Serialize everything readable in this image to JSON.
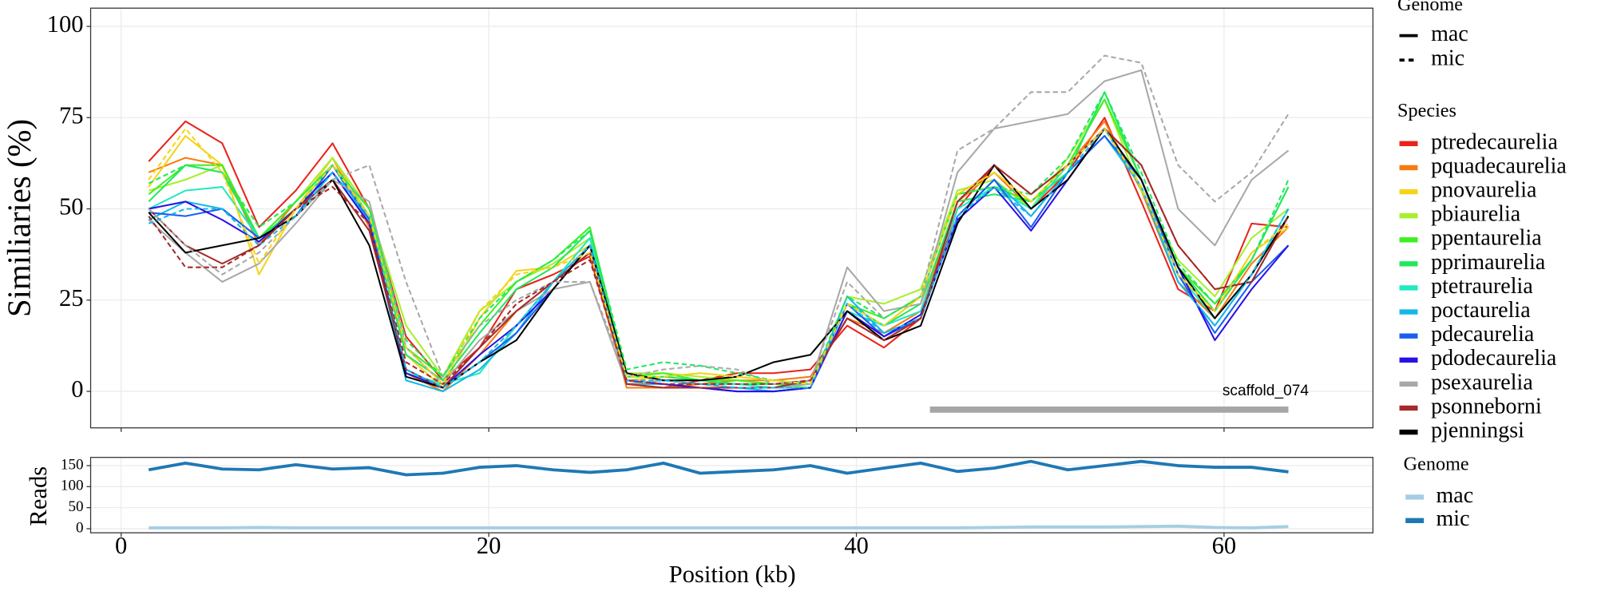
{
  "chart_data": [
    {
      "type": "line",
      "y_label": "Similiaries (%)",
      "xlim": [
        -1.66,
        68.1
      ],
      "ylim": [
        -10,
        105
      ],
      "yticks": [
        0,
        25,
        50,
        75,
        100
      ],
      "grid": true,
      "x": [
        1.5,
        3.5,
        5.5,
        7.5,
        9.5,
        11.5,
        13.5,
        15.5,
        17.5,
        19.5,
        21.5,
        23.5,
        25.5,
        27.5,
        29.5,
        31.5,
        33.5,
        35.5,
        37.5,
        39.5,
        41.5,
        43.5,
        45.5,
        47.5,
        49.5,
        51.5,
        53.5,
        55.5,
        57.5,
        59.5,
        61.5,
        63.5
      ],
      "genome_legend": {
        "title": "Genome",
        "items": [
          {
            "name": "mac",
            "dash": "solid"
          },
          {
            "name": "mic",
            "dash": "dashed"
          }
        ]
      },
      "legend_title": "Species",
      "annotation": {
        "text": "scaffold_074",
        "xstart": 44,
        "xend": 63.5,
        "y": -5,
        "color": "#a6a6a6"
      },
      "series": [
        {
          "name": "ptredecaurelia",
          "genome": "mac",
          "color": "#e8231a",
          "values": [
            63,
            74,
            68,
            45,
            55,
            68,
            50,
            15,
            3,
            12,
            28,
            32,
            37,
            2,
            1,
            3,
            5,
            5,
            6,
            18,
            12,
            20,
            50,
            62,
            50,
            60,
            75,
            52,
            28,
            22,
            46,
            45
          ]
        },
        {
          "name": "pquadecaurelia",
          "genome": "mac",
          "color": "#f97a10",
          "values": [
            60,
            64,
            62,
            40,
            52,
            64,
            45,
            5,
            0,
            10,
            22,
            30,
            38,
            1,
            1,
            2,
            3,
            3,
            4,
            20,
            16,
            22,
            52,
            60,
            50,
            62,
            74,
            55,
            30,
            20,
            35,
            45
          ]
        },
        {
          "name": "pnovaurelia",
          "genome": "mac",
          "color": "#f5d31a",
          "values": [
            56,
            70,
            62,
            32,
            50,
            64,
            48,
            10,
            1,
            20,
            33,
            34,
            40,
            3,
            4,
            5,
            4,
            3,
            2,
            24,
            18,
            26,
            54,
            60,
            52,
            62,
            72,
            56,
            32,
            22,
            38,
            45
          ]
        },
        {
          "name": "pbiaurelia",
          "genome": "mac",
          "color": "#a6f02a",
          "values": [
            55,
            58,
            62,
            42,
            52,
            64,
            50,
            18,
            4,
            22,
            30,
            35,
            42,
            5,
            5,
            4,
            3,
            2,
            1,
            26,
            24,
            28,
            55,
            58,
            50,
            64,
            80,
            55,
            36,
            26,
            42,
            50
          ]
        },
        {
          "name": "ppentaurelia",
          "genome": "mac",
          "color": "#3ef01e",
          "values": [
            54,
            62,
            62,
            42,
            52,
            62,
            50,
            12,
            4,
            18,
            30,
            36,
            45,
            4,
            5,
            3,
            3,
            2,
            2,
            24,
            20,
            26,
            54,
            56,
            52,
            62,
            80,
            58,
            34,
            24,
            36,
            56
          ]
        },
        {
          "name": "pprimaurelia",
          "genome": "mac",
          "color": "#20e860",
          "values": [
            52,
            62,
            60,
            42,
            50,
            62,
            48,
            10,
            3,
            16,
            28,
            34,
            44,
            4,
            4,
            3,
            2,
            2,
            2,
            24,
            18,
            24,
            52,
            54,
            52,
            60,
            82,
            58,
            34,
            22,
            36,
            56
          ]
        },
        {
          "name": "ptetraurelia",
          "genome": "mac",
          "color": "#22e8c0",
          "values": [
            50,
            55,
            56,
            42,
            48,
            60,
            46,
            5,
            2,
            5,
            18,
            30,
            42,
            2,
            3,
            2,
            2,
            1,
            1,
            22,
            18,
            22,
            50,
            56,
            50,
            62,
            72,
            56,
            32,
            20,
            32,
            50
          ]
        },
        {
          "name": "poctaurelia",
          "genome": "mac",
          "color": "#14b8e8",
          "values": [
            47,
            52,
            50,
            42,
            48,
            62,
            46,
            3,
            0,
            6,
            16,
            30,
            40,
            2,
            2,
            1,
            1,
            0,
            1,
            26,
            16,
            20,
            48,
            58,
            48,
            60,
            70,
            56,
            30,
            18,
            32,
            48
          ]
        },
        {
          "name": "pdecaurelia",
          "genome": "mac",
          "color": "#1a5ef0",
          "values": [
            49,
            48,
            50,
            42,
            48,
            62,
            47,
            6,
            1,
            8,
            16,
            28,
            40,
            3,
            2,
            1,
            0,
            0,
            1,
            24,
            15,
            20,
            48,
            58,
            45,
            60,
            70,
            58,
            32,
            16,
            30,
            40
          ]
        },
        {
          "name": "pdodecaurelia",
          "genome": "mac",
          "color": "#2a10e8",
          "values": [
            50,
            52,
            47,
            41,
            50,
            60,
            46,
            5,
            1,
            10,
            18,
            28,
            40,
            3,
            2,
            1,
            0,
            0,
            1,
            22,
            15,
            21,
            47,
            56,
            44,
            58,
            72,
            58,
            34,
            14,
            28,
            40
          ]
        },
        {
          "name": "psexaurelia",
          "genome": "mac",
          "color": "#a8a8a8",
          "values": [
            47,
            38,
            30,
            35,
            46,
            58,
            52,
            12,
            2,
            14,
            22,
            28,
            30,
            2,
            3,
            2,
            1,
            1,
            2,
            34,
            22,
            24,
            60,
            72,
            74,
            76,
            85,
            88,
            50,
            40,
            58,
            66
          ]
        },
        {
          "name": "psonneborni",
          "genome": "mac",
          "color": "#a52a2a",
          "values": [
            50,
            40,
            35,
            40,
            50,
            58,
            44,
            6,
            1,
            12,
            22,
            30,
            38,
            2,
            1,
            1,
            1,
            1,
            3,
            20,
            14,
            20,
            52,
            62,
            54,
            62,
            72,
            62,
            40,
            28,
            30,
            48
          ]
        },
        {
          "name": "pjenningsi",
          "genome": "mac",
          "color": "#000000",
          "values": [
            49,
            38,
            40,
            42,
            48,
            58,
            40,
            4,
            1,
            8,
            14,
            28,
            40,
            5,
            3,
            3,
            4,
            8,
            10,
            22,
            14,
            18,
            46,
            62,
            50,
            58,
            72,
            58,
            34,
            20,
            32,
            48
          ]
        },
        {
          "name": "psexaurelia",
          "genome": "mic",
          "color": "#a8a8a8",
          "values": [
            50,
            40,
            32,
            38,
            48,
            58,
            62,
            30,
            4,
            18,
            25,
            30,
            30,
            4,
            6,
            7,
            6,
            2,
            3,
            30,
            20,
            26,
            66,
            72,
            82,
            82,
            92,
            90,
            62,
            52,
            60,
            76
          ]
        },
        {
          "name": "pprimaurelia",
          "genome": "mic",
          "color": "#20e860",
          "values": [
            57,
            62,
            60,
            45,
            52,
            62,
            50,
            14,
            4,
            20,
            30,
            36,
            44,
            6,
            8,
            7,
            5,
            3,
            2,
            26,
            20,
            26,
            54,
            56,
            54,
            64,
            82,
            60,
            35,
            24,
            36,
            58
          ]
        },
        {
          "name": "poctaurelia",
          "genome": "mic",
          "color": "#14b8e8",
          "values": [
            46,
            50,
            50,
            40,
            48,
            60,
            48,
            6,
            1,
            8,
            18,
            30,
            40,
            3,
            3,
            2,
            1,
            1,
            1,
            24,
            16,
            20,
            48,
            56,
            48,
            60,
            72,
            56,
            30,
            18,
            32,
            50
          ]
        },
        {
          "name": "psonneborni",
          "genome": "mic",
          "color": "#a52a2a",
          "values": [
            48,
            34,
            34,
            40,
            50,
            56,
            46,
            8,
            2,
            12,
            24,
            30,
            36,
            3,
            2,
            2,
            2,
            2,
            3,
            20,
            14,
            20,
            52,
            62,
            54,
            62,
            72,
            62,
            40,
            28,
            30,
            48
          ]
        },
        {
          "name": "pnovaurelia",
          "genome": "mic",
          "color": "#f5d31a",
          "values": [
            58,
            72,
            60,
            35,
            50,
            62,
            48,
            12,
            2,
            22,
            32,
            34,
            38,
            4,
            4,
            5,
            4,
            3,
            2,
            24,
            18,
            26,
            54,
            60,
            52,
            62,
            72,
            56,
            32,
            22,
            38,
            46
          ]
        }
      ]
    },
    {
      "type": "line",
      "x_label": "Position (kb)",
      "y_label": "Reads",
      "xlim": [
        -1.66,
        68.1
      ],
      "xticks": [
        0,
        20,
        40,
        60
      ],
      "ylim": [
        -9.7,
        169.5
      ],
      "yticks": [
        0,
        50,
        100,
        150
      ],
      "grid": true,
      "legend_title": "Genome",
      "x": [
        1.5,
        3.5,
        5.5,
        7.5,
        9.5,
        11.5,
        13.5,
        15.5,
        17.5,
        19.5,
        21.5,
        23.5,
        25.5,
        27.5,
        29.5,
        31.5,
        33.5,
        35.5,
        37.5,
        39.5,
        41.5,
        43.5,
        45.5,
        47.5,
        49.5,
        51.5,
        53.5,
        55.5,
        57.5,
        59.5,
        61.5,
        63.5
      ],
      "series": [
        {
          "name": "mac",
          "color": "#a6cee3",
          "values": [
            2,
            2,
            2,
            3,
            2,
            2,
            2,
            2,
            2,
            2,
            2,
            2,
            2,
            2,
            2,
            2,
            2,
            2,
            2,
            2,
            2,
            2,
            2,
            3,
            4,
            4,
            4,
            5,
            6,
            3,
            2,
            5
          ]
        },
        {
          "name": "mic",
          "color": "#1f78b4",
          "values": [
            140,
            156,
            142,
            140,
            152,
            142,
            145,
            128,
            132,
            146,
            150,
            140,
            134,
            140,
            156,
            132,
            136,
            140,
            150,
            132,
            144,
            156,
            136,
            144,
            160,
            140,
            150,
            160,
            150,
            146,
            146,
            135
          ]
        }
      ]
    }
  ]
}
